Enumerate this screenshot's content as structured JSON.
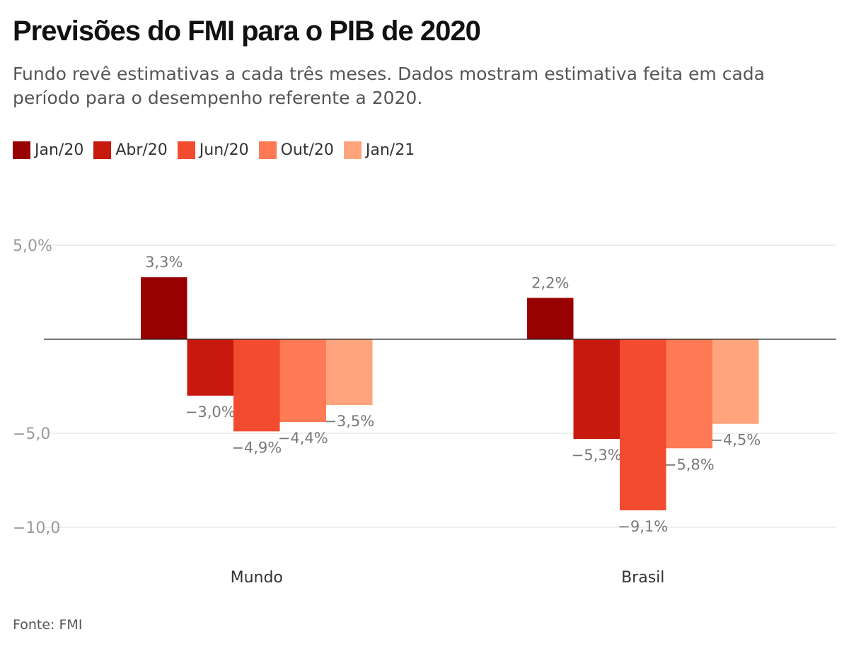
{
  "title": "Previsões do FMI para o PIB de 2020",
  "subtitle": "Fundo revê estimativas a cada três meses. Dados mostram estimativa feita em cada período para o desempenho referente a 2020.",
  "source": "Fonte: FMI",
  "chart_data": {
    "type": "bar",
    "categories": [
      "Mundo",
      "Brasil"
    ],
    "series": [
      {
        "name": "Jan/20",
        "color": "#990000",
        "values": [
          3.3,
          2.2
        ],
        "labels": [
          "3,3%",
          "2,2%"
        ]
      },
      {
        "name": "Abr/20",
        "color": "#c8190f",
        "values": [
          -3.0,
          -5.3
        ],
        "labels": [
          "−3,0%",
          "−5,3%"
        ]
      },
      {
        "name": "Jun/20",
        "color": "#f24b2f",
        "values": [
          -4.9,
          -9.1
        ],
        "labels": [
          "−4,9%",
          "−9,1%"
        ]
      },
      {
        "name": "Out/20",
        "color": "#ff7a55",
        "values": [
          -4.4,
          -5.8
        ],
        "labels": [
          "−4,4%",
          "−5,8%"
        ]
      },
      {
        "name": "Jan/21",
        "color": "#ffa47c",
        "values": [
          -3.5,
          -4.5
        ],
        "labels": [
          "−3,5%",
          "−4,5%"
        ]
      }
    ],
    "yticks": [
      5,
      -5,
      -10
    ],
    "ytick_labels": [
      "5,0%",
      "−5,0",
      "−10,0"
    ],
    "ylim": [
      -10,
      5
    ],
    "grid": true,
    "legend_position": "top-left"
  }
}
